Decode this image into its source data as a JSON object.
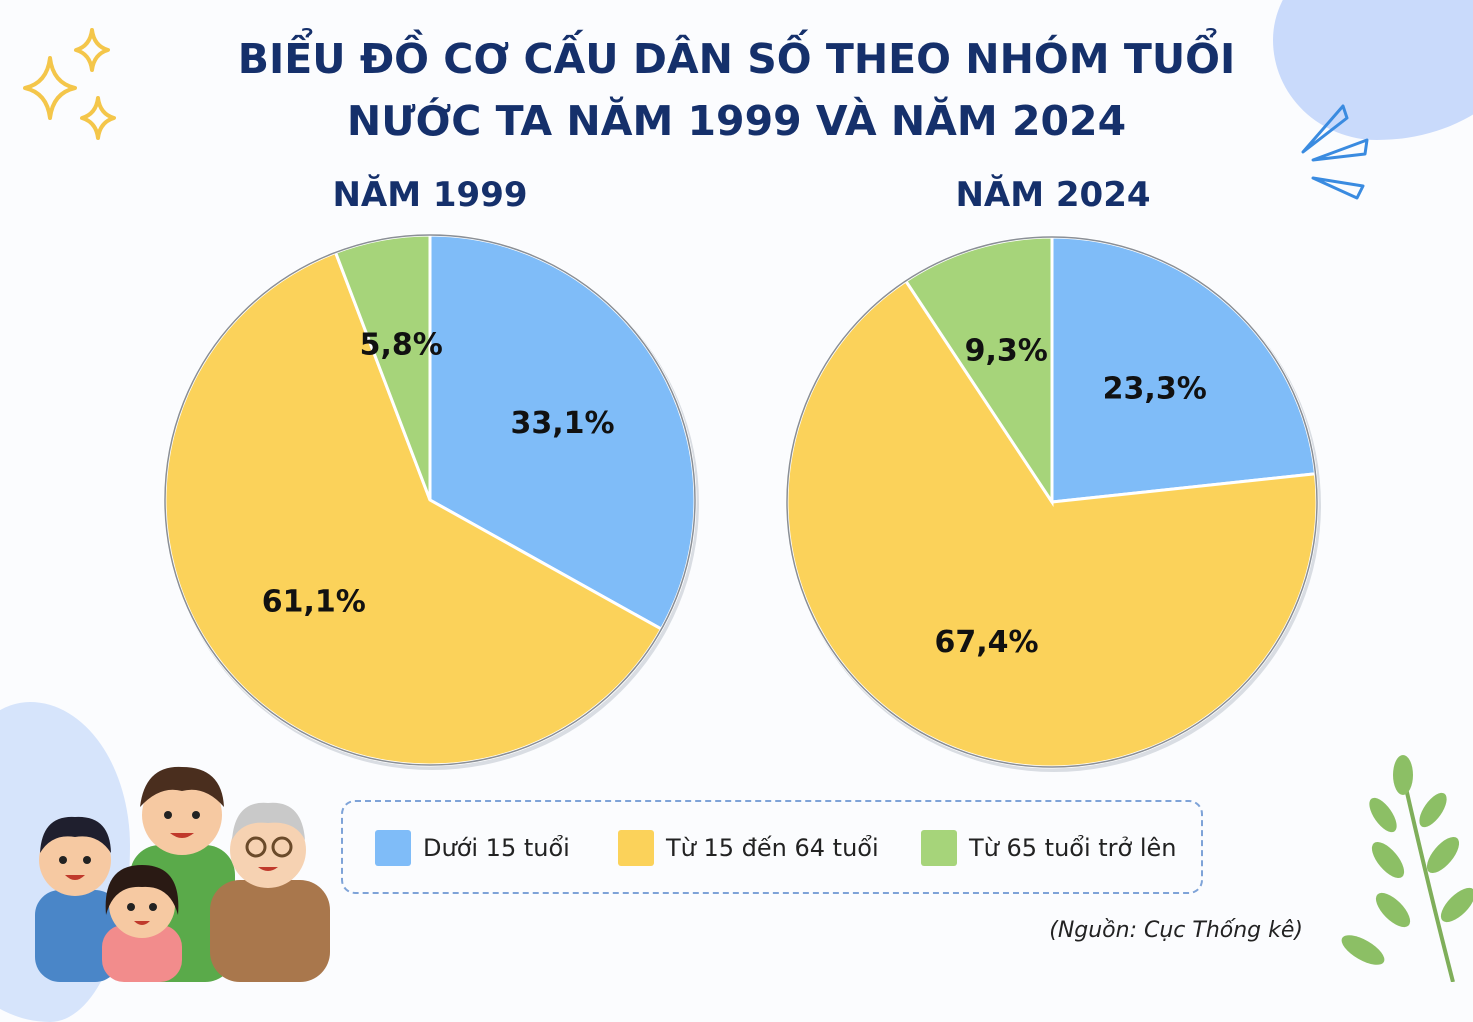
{
  "title_line1": "BIỂU ĐỒ CƠ CẤU DÂN SỐ THEO NHÓM TUỔI",
  "title_line2": "NƯỚC TA NĂM 1999 VÀ NĂM 2024",
  "source": "(Nguồn: Cục Thống kê)",
  "colors": {
    "blue": "#7fbcf8",
    "yellow": "#fbd25a",
    "green": "#a6d47a",
    "title": "#15306b"
  },
  "chart_data": [
    {
      "type": "pie",
      "title": "NĂM 1999",
      "categories": [
        "Dưới 15 tuổi",
        "Từ 15 đến 64 tuổi",
        "Từ 65 tuổi trở lên"
      ],
      "values": [
        33.1,
        61.1,
        5.8
      ],
      "labels": [
        "33,1%",
        "61,1%",
        "5,8%"
      ]
    },
    {
      "type": "pie",
      "title": "NĂM 2024",
      "categories": [
        "Dưới 15 tuổi",
        "Từ 15 đến 64 tuổi",
        "Từ 65 tuổi trở lên"
      ],
      "values": [
        23.3,
        67.4,
        9.3
      ],
      "labels": [
        "23,3%",
        "67,4%",
        "9,3%"
      ]
    }
  ],
  "legend": [
    {
      "label": "Dưới 15 tuổi",
      "color": "#7fbcf8"
    },
    {
      "label": "Từ 15 đến 64 tuổi",
      "color": "#fbd25a"
    },
    {
      "label": "Từ 65 tuổi trở lên",
      "color": "#a6d47a"
    }
  ]
}
